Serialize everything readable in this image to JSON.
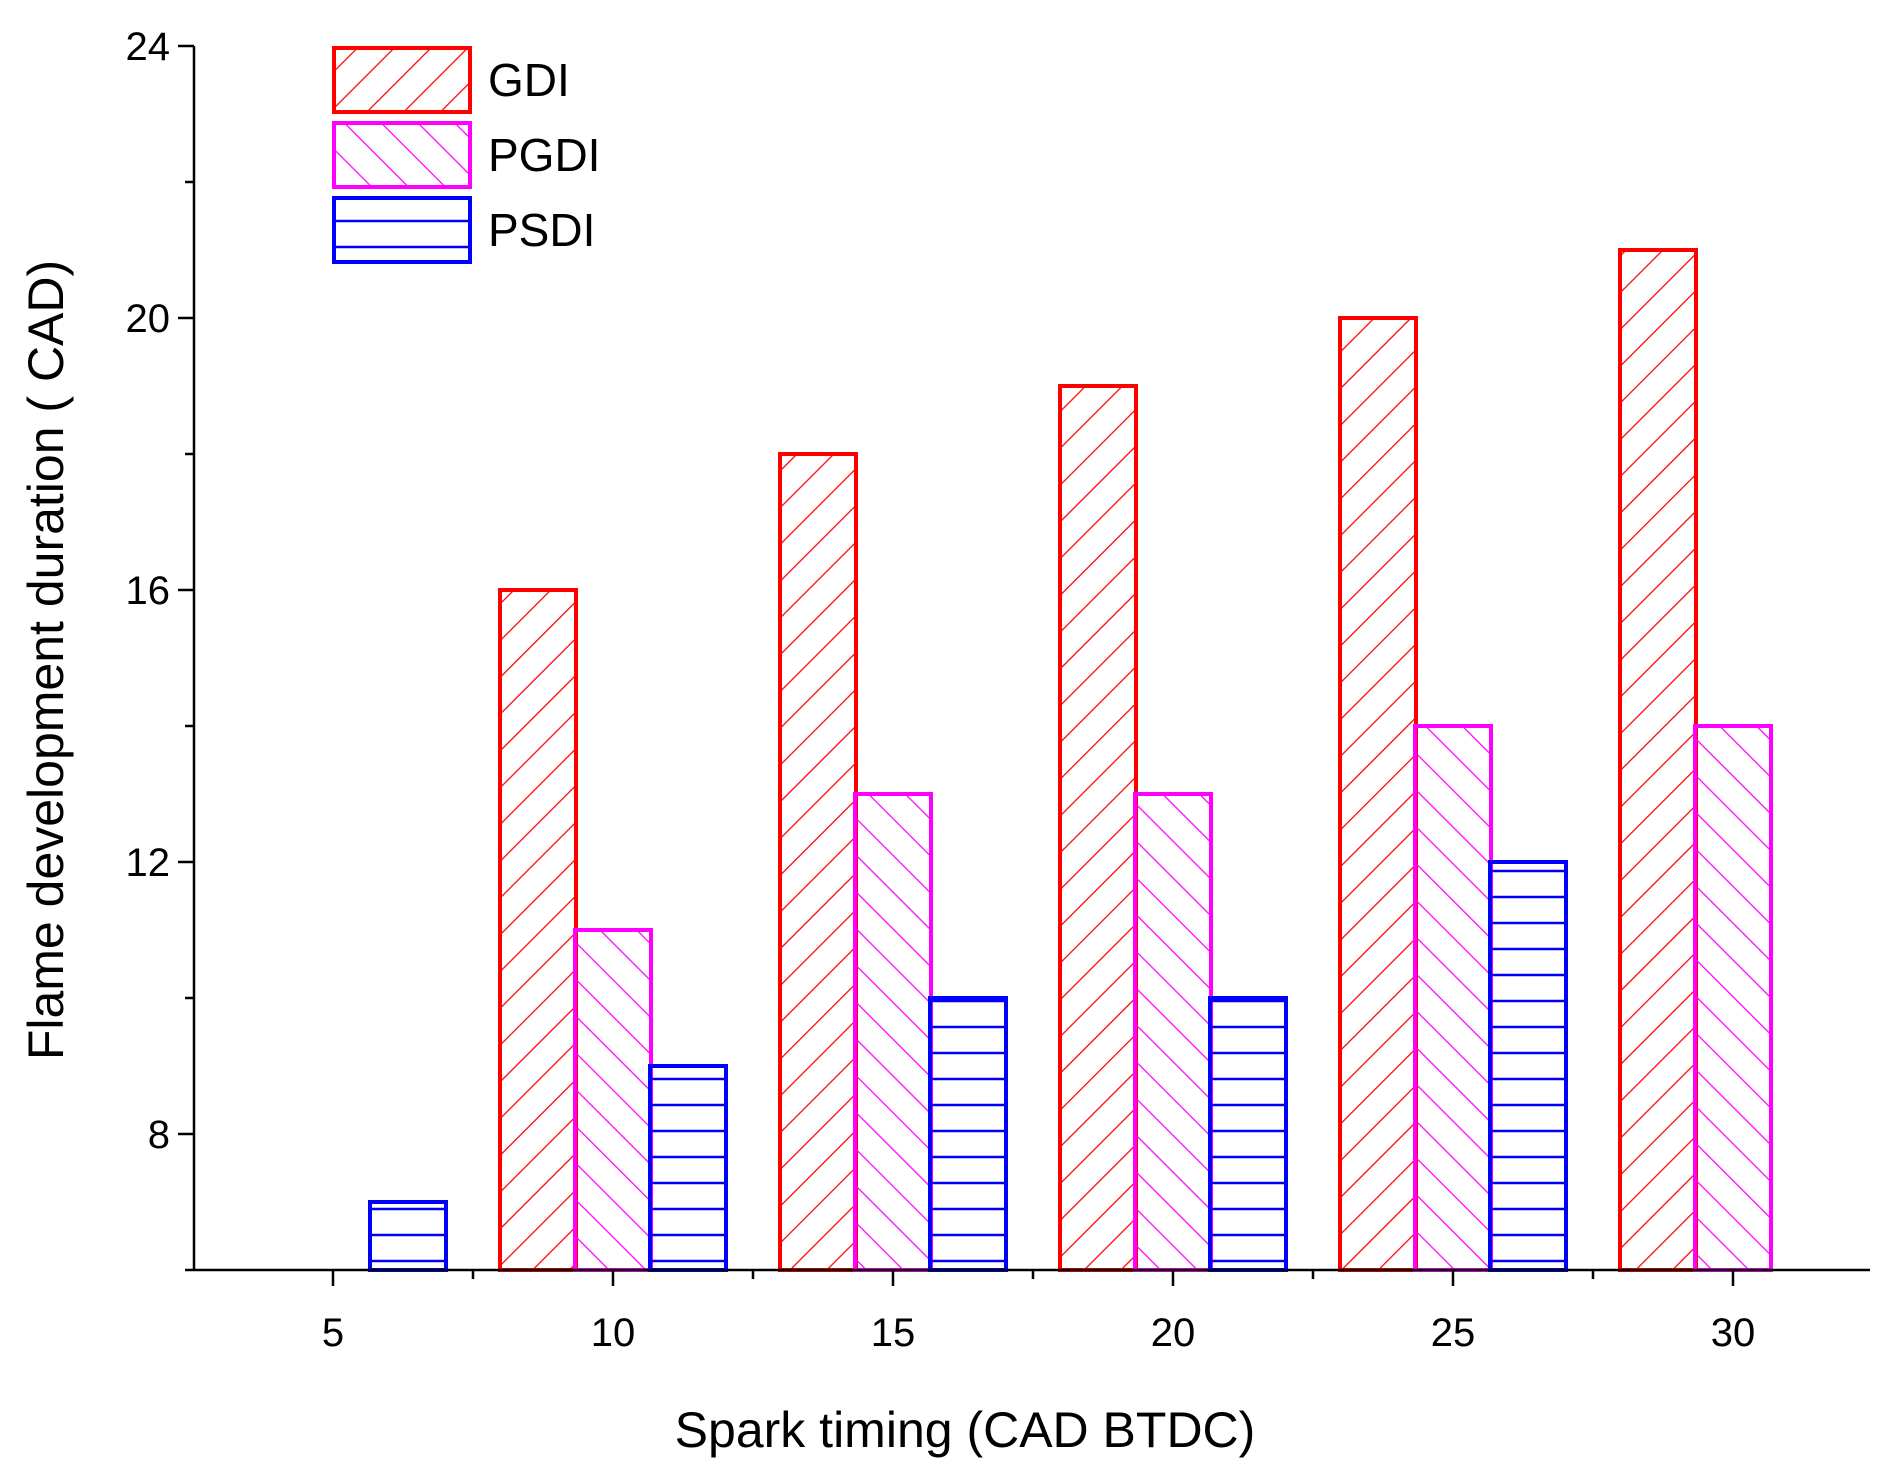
{
  "chart_data": {
    "type": "bar",
    "title": "",
    "xlabel": "Spark timing (CAD BTDC)",
    "ylabel": "Flame development duration ( CAD)",
    "categories": [
      "5",
      "10",
      "15",
      "20",
      "25",
      "30"
    ],
    "ylim": [
      6,
      24
    ],
    "yticks": [
      8,
      12,
      16,
      20,
      24
    ],
    "legend_position": "top-left",
    "series": [
      {
        "name": "GDI",
        "color": "#ff0000",
        "pattern": "diagonal-up",
        "values": [
          null,
          16,
          18,
          19,
          20,
          21
        ]
      },
      {
        "name": "PGDI",
        "color": "#ff00ff",
        "pattern": "diagonal-down",
        "values": [
          null,
          11,
          13,
          13,
          14,
          14
        ]
      },
      {
        "name": "PSDI",
        "color": "#0000ff",
        "pattern": "horizontal",
        "values": [
          7,
          9,
          10,
          10,
          12,
          null
        ]
      }
    ]
  }
}
